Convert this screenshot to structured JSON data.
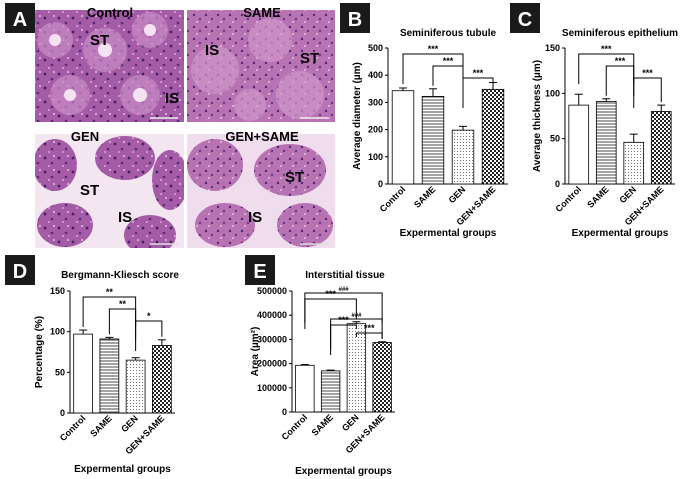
{
  "panels": {
    "A": {
      "letter": "A",
      "images": [
        {
          "title": "Control",
          "labels": [
            "ST",
            "IS"
          ]
        },
        {
          "title": "SAME",
          "labels": [
            "IS",
            "ST"
          ]
        },
        {
          "title": "GEN",
          "labels": [
            "ST",
            "IS"
          ]
        },
        {
          "title": "GEN+SAME",
          "labels": [
            "ST",
            "IS"
          ]
        }
      ]
    },
    "B": {
      "letter": "B"
    },
    "C": {
      "letter": "C"
    },
    "D": {
      "letter": "D"
    },
    "E": {
      "letter": "E"
    }
  },
  "chart_data": [
    {
      "id": "B",
      "type": "bar",
      "title": "Seminiferous tubule",
      "ylabel": "Average diameter (µm)",
      "xlabel": "Expermental groups",
      "categories": [
        "Control",
        "SAME",
        "GEN",
        "GEN+SAME"
      ],
      "values": [
        343,
        322,
        198,
        348
      ],
      "errors": [
        10,
        28,
        14,
        25
      ],
      "ylim": [
        0,
        500
      ],
      "yticks": [
        "0",
        "100",
        "200",
        "300",
        "400",
        "500"
      ],
      "tickvals": [
        0,
        100,
        200,
        300,
        400,
        500
      ],
      "brackets": [
        {
          "from": 0,
          "to": 2,
          "label": "***"
        },
        {
          "from": 1,
          "to": 2,
          "label": "***"
        },
        {
          "from": 2,
          "to": 3,
          "label": "***"
        }
      ]
    },
    {
      "id": "C",
      "type": "bar",
      "title": "Seminiferous epithelium",
      "ylabel": "Average thickness (µm)",
      "xlabel": "Expermental groups",
      "categories": [
        "Control",
        "SAME",
        "GEN",
        "GEN+SAME"
      ],
      "values": [
        87,
        91,
        46,
        80
      ],
      "errors": [
        12,
        3,
        9,
        7
      ],
      "ylim": [
        0,
        150
      ],
      "yticks": [
        "0",
        "50",
        "100",
        "150"
      ],
      "tickvals": [
        0,
        50,
        100,
        150
      ],
      "brackets": [
        {
          "from": 0,
          "to": 2,
          "label": "***"
        },
        {
          "from": 1,
          "to": 2,
          "label": "***"
        },
        {
          "from": 2,
          "to": 3,
          "label": "***"
        }
      ]
    },
    {
      "id": "D",
      "type": "bar",
      "title": "Bergmann-Kliesch score",
      "ylabel": "Percentage (%)",
      "xlabel": "Expermental groups",
      "categories": [
        "Control",
        "SAME",
        "GEN",
        "GEN+SAME"
      ],
      "values": [
        97,
        91,
        65,
        83
      ],
      "errors": [
        5,
        2,
        3,
        7
      ],
      "ylim": [
        0,
        150
      ],
      "yticks": [
        "0",
        "50",
        "100",
        "150"
      ],
      "tickvals": [
        0,
        50,
        100,
        150
      ],
      "brackets": [
        {
          "from": 0,
          "to": 2,
          "label": "**"
        },
        {
          "from": 1,
          "to": 2,
          "label": "**"
        },
        {
          "from": 2,
          "to": 3,
          "label": "*"
        }
      ]
    },
    {
      "id": "E",
      "type": "bar",
      "title": "Interstitial tissue",
      "ylabel": "Area (µm²)",
      "xlabel": "Expermental groups",
      "categories": [
        "Control",
        "SAME",
        "GEN",
        "GEN+SAME"
      ],
      "values": [
        193000,
        170000,
        365000,
        287000
      ],
      "errors": [
        3000,
        3000,
        8000,
        3000
      ],
      "ylim": [
        0,
        500000
      ],
      "yticks": [
        "0",
        "100000",
        "200000",
        "300000",
        "400000",
        "500000"
      ],
      "tickvals": [
        0,
        100000,
        200000,
        300000,
        400000,
        500000
      ],
      "brackets": [
        {
          "from": 0,
          "to": 2,
          "label": "***"
        },
        {
          "from": 1,
          "to": 2,
          "label": "***"
        },
        {
          "from": 2,
          "to": 3,
          "label": "***"
        },
        {
          "from": 0,
          "to": 3,
          "label": "###"
        },
        {
          "from": 1,
          "to": 3,
          "label": "###"
        }
      ]
    }
  ]
}
